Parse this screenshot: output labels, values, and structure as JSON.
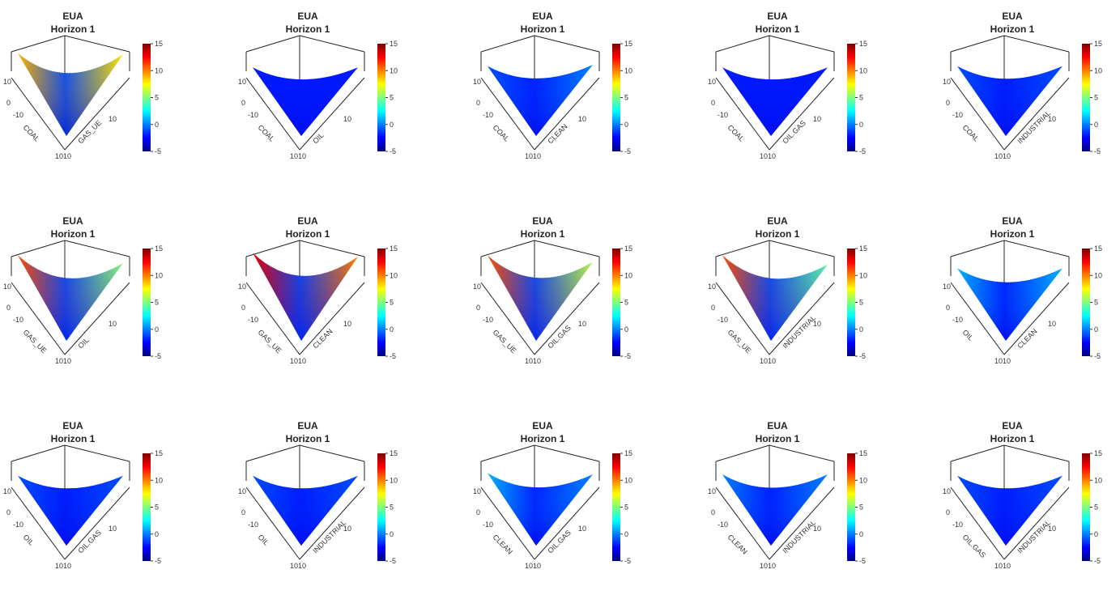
{
  "figure": {
    "colorbar": {
      "ticks": [
        "15",
        "10",
        "5",
        "0",
        "-5"
      ],
      "tick_values": [
        15,
        10,
        5,
        0,
        -5
      ],
      "range": [
        -5,
        15
      ],
      "colormap": [
        "#00007f",
        "#0000ff",
        "#007fff",
        "#00ffff",
        "#7fff7f",
        "#ffff00",
        "#ff7f00",
        "#ff0000",
        "#7f0000"
      ]
    },
    "zaxis_ticks": [
      "10",
      "0"
    ],
    "xaxis_ticks": [
      "-10",
      "0",
      "10"
    ],
    "yaxis_ticks": [
      "0",
      "10"
    ],
    "corner_label": "1010"
  },
  "chart_data": [
    {
      "type": "surface3d",
      "title": "EUA",
      "subtitle": "Horizon  1",
      "xlabel": "COAL",
      "ylabel": "GAS_UE",
      "surface": {
        "left_edge": 9,
        "right_edge": 8,
        "center": -1,
        "front": -4
      }
    },
    {
      "type": "surface3d",
      "title": "EUA",
      "subtitle": "Horizon  1",
      "xlabel": "COAL",
      "ylabel": "OIL",
      "surface": {
        "left_edge": -2,
        "right_edge": -2,
        "center": -2,
        "front": -3
      }
    },
    {
      "type": "surface3d",
      "title": "EUA",
      "subtitle": "Horizon  1",
      "xlabel": "COAL",
      "ylabel": "CLEAN",
      "surface": {
        "left_edge": -1,
        "right_edge": 0,
        "center": -2,
        "front": -3
      }
    },
    {
      "type": "surface3d",
      "title": "EUA",
      "subtitle": "Horizon  1",
      "xlabel": "COAL",
      "ylabel": "OIL.GAS",
      "surface": {
        "left_edge": -2,
        "right_edge": -2,
        "center": -2,
        "front": -3
      }
    },
    {
      "type": "surface3d",
      "title": "EUA",
      "subtitle": "Horizon  1",
      "xlabel": "COAL",
      "ylabel": "INDUSTRIAL",
      "surface": {
        "left_edge": -1,
        "right_edge": -1,
        "center": -2,
        "front": -3
      }
    },
    {
      "type": "surface3d",
      "title": "EUA",
      "subtitle": "Horizon  1",
      "xlabel": "GAS_UE",
      "ylabel": "OIL",
      "surface": {
        "left_edge": 11,
        "right_edge": 5,
        "center": -1,
        "front": -3
      }
    },
    {
      "type": "surface3d",
      "title": "EUA",
      "subtitle": "Horizon  1",
      "xlabel": "GAS_UE",
      "ylabel": "CLEAN",
      "surface": {
        "left_edge": 13,
        "right_edge": 10,
        "center": -1,
        "front": -3
      }
    },
    {
      "type": "surface3d",
      "title": "EUA",
      "subtitle": "Horizon  1",
      "xlabel": "GAS_UE",
      "ylabel": "OIL.GAS",
      "surface": {
        "left_edge": 11,
        "right_edge": 6,
        "center": -1,
        "front": -3
      }
    },
    {
      "type": "surface3d",
      "title": "EUA",
      "subtitle": "Horizon  1",
      "xlabel": "GAS_UE",
      "ylabel": "INDUSTRIAL",
      "surface": {
        "left_edge": 11,
        "right_edge": 4,
        "center": -1,
        "front": -3
      }
    },
    {
      "type": "surface3d",
      "title": "EUA",
      "subtitle": "Horizon  1",
      "xlabel": "OIL",
      "ylabel": "CLEAN",
      "surface": {
        "left_edge": 1,
        "right_edge": 1,
        "center": -2,
        "front": -3
      }
    },
    {
      "type": "surface3d",
      "title": "EUA",
      "subtitle": "Horizon  1",
      "xlabel": "OIL",
      "ylabel": "OIL.GAS",
      "surface": {
        "left_edge": -1,
        "right_edge": -1,
        "center": -2,
        "front": -3
      }
    },
    {
      "type": "surface3d",
      "title": "EUA",
      "subtitle": "Horizon  1",
      "xlabel": "OIL",
      "ylabel": "INDUSTRIAL",
      "surface": {
        "left_edge": -1,
        "right_edge": -1,
        "center": -2,
        "front": -3
      }
    },
    {
      "type": "surface3d",
      "title": "EUA",
      "subtitle": "Horizon  1",
      "xlabel": "CLEAN",
      "ylabel": "OIL.GAS",
      "surface": {
        "left_edge": 1,
        "right_edge": 0,
        "center": -2,
        "front": -3
      }
    },
    {
      "type": "surface3d",
      "title": "EUA",
      "subtitle": "Horizon  1",
      "xlabel": "CLEAN",
      "ylabel": "INDUSTRIAL",
      "surface": {
        "left_edge": 0,
        "right_edge": 0,
        "center": -2,
        "front": -3
      }
    },
    {
      "type": "surface3d",
      "title": "EUA",
      "subtitle": "Horizon  1",
      "xlabel": "OIL.GAS",
      "ylabel": "INDUSTRIAL",
      "surface": {
        "left_edge": -1,
        "right_edge": -1,
        "center": -2,
        "front": -3
      }
    }
  ]
}
